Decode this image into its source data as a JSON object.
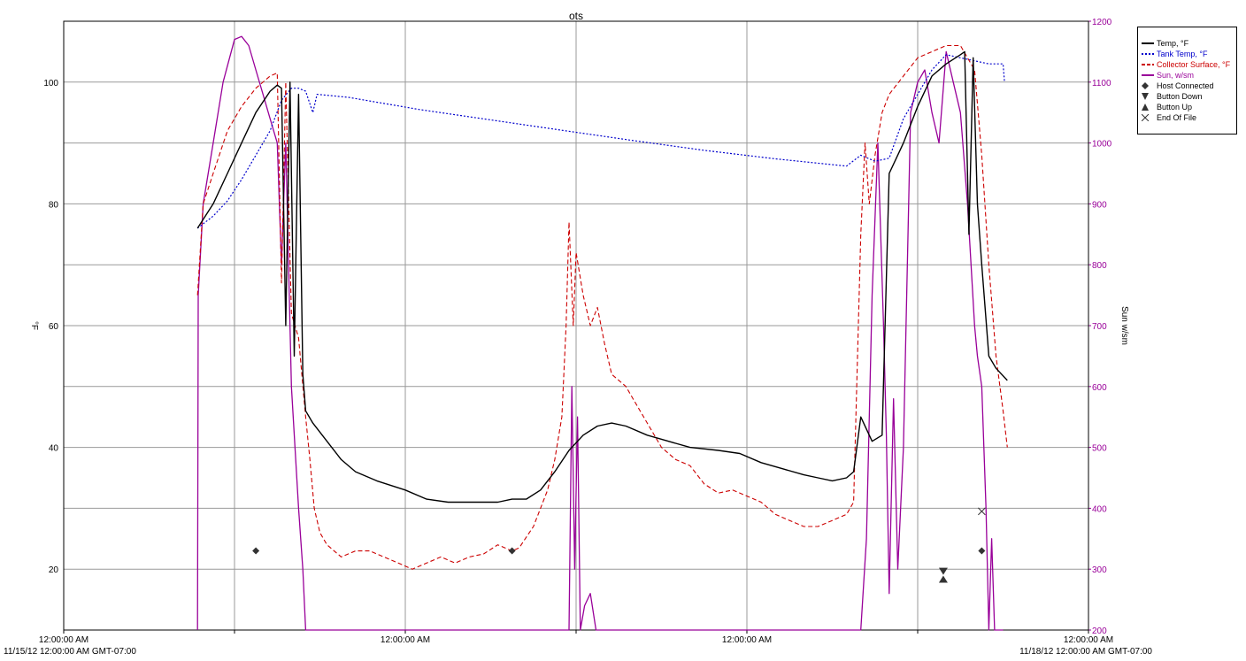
{
  "chart_data": {
    "type": "line",
    "title": "ots",
    "ylabel_left": "°F",
    "ylabel_right": "Sun w/sm",
    "x_tick_labels": [
      "12:00:00 AM",
      "12:00:00 AM",
      "12:00:00 AM",
      "12:00:00 AM"
    ],
    "x_range_label_start": "11/15/12 12:00:00 AM GMT-07:00",
    "x_range_label_end": "11/18/12 12:00:00 AM GMT-07:00",
    "xlim_hours": [
      0,
      72
    ],
    "ylim_left": [
      10,
      110
    ],
    "ylim_right": [
      200,
      1200
    ],
    "y_ticks_left": [
      "20",
      "40",
      "60",
      "80",
      "100"
    ],
    "y_ticks_right": [
      "200",
      "300",
      "400",
      "500",
      "600",
      "700",
      "800",
      "900",
      "1000",
      "1100",
      "1200"
    ],
    "grid": true,
    "legend_position": "top-right",
    "legend": [
      {
        "label": "Temp, °F",
        "color": "#000000",
        "style": "solid"
      },
      {
        "label": "Tank Temp, °F",
        "color": "#0000cc",
        "style": "dotted"
      },
      {
        "label": "Collector Surface, °F",
        "color": "#cc0000",
        "style": "dashed"
      },
      {
        "label": "Sun, w/sm",
        "color": "#990099",
        "style": "solid"
      },
      {
        "label": "Host Connected",
        "marker": "diamond"
      },
      {
        "label": "Button Down",
        "marker": "triangle-down"
      },
      {
        "label": "Button Up",
        "marker": "triangle-up"
      },
      {
        "label": "End Of File",
        "marker": "x"
      }
    ],
    "series": [
      {
        "name": "Temp, °F",
        "axis": "left",
        "points": [
          [
            9.4,
            76
          ],
          [
            10.5,
            80
          ],
          [
            11.5,
            85
          ],
          [
            12.5,
            90
          ],
          [
            13.5,
            95
          ],
          [
            14.5,
            98.5
          ],
          [
            15,
            99.5
          ],
          [
            15.3,
            99
          ],
          [
            15.6,
            60
          ],
          [
            15.9,
            100
          ],
          [
            16.2,
            55
          ],
          [
            16.5,
            98
          ],
          [
            16.8,
            52
          ],
          [
            17,
            46
          ],
          [
            17.5,
            44
          ],
          [
            18.5,
            41
          ],
          [
            19.5,
            38
          ],
          [
            20.5,
            36
          ],
          [
            22,
            34.5
          ],
          [
            24,
            33
          ],
          [
            25.5,
            31.5
          ],
          [
            27,
            31
          ],
          [
            29,
            31
          ],
          [
            30.5,
            31
          ],
          [
            31.5,
            31.5
          ],
          [
            32.5,
            31.5
          ],
          [
            33.5,
            33
          ],
          [
            34.5,
            36
          ],
          [
            35.5,
            39.5
          ],
          [
            36.5,
            42
          ],
          [
            37.5,
            43.5
          ],
          [
            38.5,
            44
          ],
          [
            39.5,
            43.5
          ],
          [
            41,
            42
          ],
          [
            42.5,
            41
          ],
          [
            44,
            40
          ],
          [
            46,
            39.5
          ],
          [
            47.5,
            39
          ],
          [
            49,
            37.5
          ],
          [
            50.5,
            36.5
          ],
          [
            52,
            35.5
          ],
          [
            53,
            35
          ],
          [
            54,
            34.5
          ],
          [
            55,
            35
          ],
          [
            55.5,
            36
          ],
          [
            56,
            45
          ],
          [
            56.8,
            41
          ],
          [
            57.5,
            42
          ],
          [
            58,
            85
          ],
          [
            59,
            90
          ],
          [
            60,
            96
          ],
          [
            61,
            101
          ],
          [
            62,
            103
          ],
          [
            63,
            104.5
          ],
          [
            63.3,
            105
          ],
          [
            63.6,
            75
          ],
          [
            63.9,
            104
          ],
          [
            64.2,
            80
          ],
          [
            64.5,
            70
          ],
          [
            65,
            55
          ],
          [
            65.5,
            53
          ],
          [
            66.3,
            51
          ]
        ]
      },
      {
        "name": "Tank Temp, °F",
        "axis": "left",
        "points": [
          [
            9.4,
            76
          ],
          [
            10.5,
            78
          ],
          [
            11.5,
            80.5
          ],
          [
            12.5,
            84
          ],
          [
            13.5,
            88
          ],
          [
            14.5,
            92
          ],
          [
            15.3,
            97
          ],
          [
            16,
            99
          ],
          [
            16.5,
            99
          ],
          [
            17,
            98.5
          ],
          [
            17.5,
            95
          ],
          [
            17.8,
            98
          ],
          [
            20,
            97.5
          ],
          [
            25,
            95.5
          ],
          [
            30,
            93.8
          ],
          [
            35,
            92.1
          ],
          [
            40,
            90.4
          ],
          [
            45,
            88.8
          ],
          [
            50,
            87.4
          ],
          [
            55,
            86.2
          ],
          [
            56,
            88
          ],
          [
            57,
            87
          ],
          [
            58,
            87.5
          ],
          [
            59,
            94
          ],
          [
            60,
            98
          ],
          [
            61,
            102
          ],
          [
            62,
            104.5
          ],
          [
            63,
            104
          ],
          [
            64,
            103.5
          ],
          [
            65,
            103
          ],
          [
            66,
            103
          ],
          [
            66.1,
            100
          ]
        ]
      },
      {
        "name": "Collector Surface, °F",
        "axis": "left",
        "points": [
          [
            9.4,
            65
          ],
          [
            9.8,
            80
          ],
          [
            10.5,
            85
          ],
          [
            11.5,
            92
          ],
          [
            12.5,
            96
          ],
          [
            13.5,
            99
          ],
          [
            14.5,
            101
          ],
          [
            15,
            101.5
          ],
          [
            15.3,
            67
          ],
          [
            15.6,
            100
          ],
          [
            16,
            62
          ],
          [
            16.5,
            58
          ],
          [
            17,
            45
          ],
          [
            17.3,
            38
          ],
          [
            17.6,
            30
          ],
          [
            18,
            26
          ],
          [
            18.5,
            24
          ],
          [
            19.5,
            22
          ],
          [
            20.5,
            23
          ],
          [
            21.5,
            23
          ],
          [
            22.5,
            22
          ],
          [
            23.5,
            21
          ],
          [
            24.5,
            20
          ],
          [
            25.5,
            21
          ],
          [
            26.5,
            22
          ],
          [
            27.5,
            21
          ],
          [
            28.5,
            22
          ],
          [
            29.5,
            22.5
          ],
          [
            30.5,
            24
          ],
          [
            31.5,
            23
          ],
          [
            32,
            23.5
          ],
          [
            33,
            27
          ],
          [
            34,
            33
          ],
          [
            34.5,
            38
          ],
          [
            35,
            45
          ],
          [
            35.3,
            60
          ],
          [
            35.5,
            77
          ],
          [
            35.8,
            60
          ],
          [
            36,
            72
          ],
          [
            36.5,
            65
          ],
          [
            37,
            60
          ],
          [
            37.5,
            63
          ],
          [
            38,
            57
          ],
          [
            38.5,
            52
          ],
          [
            39,
            51
          ],
          [
            39.5,
            50
          ],
          [
            40,
            48
          ],
          [
            41,
            44
          ],
          [
            42,
            40
          ],
          [
            43,
            38
          ],
          [
            44,
            37
          ],
          [
            45,
            34
          ],
          [
            46,
            32.5
          ],
          [
            47,
            33
          ],
          [
            48,
            32
          ],
          [
            49,
            31
          ],
          [
            50,
            29
          ],
          [
            51,
            28
          ],
          [
            52,
            27
          ],
          [
            53,
            27
          ],
          [
            54,
            28
          ],
          [
            55,
            29
          ],
          [
            55.5,
            31
          ],
          [
            56,
            75
          ],
          [
            56.3,
            90
          ],
          [
            56.6,
            80
          ],
          [
            57,
            88
          ],
          [
            57.5,
            95
          ],
          [
            58,
            98
          ],
          [
            59,
            101
          ],
          [
            60,
            104
          ],
          [
            61,
            105
          ],
          [
            62,
            106
          ],
          [
            63,
            106
          ],
          [
            64,
            102
          ],
          [
            64.5,
            88
          ],
          [
            65,
            70
          ],
          [
            65.5,
            55
          ],
          [
            66,
            46
          ],
          [
            66.3,
            40
          ]
        ]
      },
      {
        "name": "Sun, w/sm",
        "axis": "right",
        "points": [
          [
            9.4,
            200
          ],
          [
            9.45,
            750
          ],
          [
            9.8,
            900
          ],
          [
            10.5,
            1000
          ],
          [
            11.2,
            1100
          ],
          [
            12,
            1170
          ],
          [
            12.5,
            1175
          ],
          [
            13,
            1160
          ],
          [
            13.5,
            1120
          ],
          [
            14,
            1080
          ],
          [
            14.5,
            1040
          ],
          [
            15,
            1000
          ],
          [
            15.3,
            800
          ],
          [
            15.6,
            1000
          ],
          [
            16,
            600
          ],
          [
            16.5,
            400
          ],
          [
            16.8,
            300
          ],
          [
            17,
            200
          ],
          [
            35.5,
            200
          ],
          [
            35.7,
            600
          ],
          [
            35.9,
            300
          ],
          [
            36.1,
            550
          ],
          [
            36.3,
            200
          ],
          [
            36.6,
            240
          ],
          [
            37,
            260
          ],
          [
            37.4,
            200
          ],
          [
            56,
            200
          ],
          [
            56.4,
            350
          ],
          [
            56.8,
            750
          ],
          [
            57.2,
            1000
          ],
          [
            57.6,
            700
          ],
          [
            57.8,
            520
          ],
          [
            58,
            260
          ],
          [
            58.3,
            580
          ],
          [
            58.6,
            300
          ],
          [
            59,
            500
          ],
          [
            59.5,
            1050
          ],
          [
            60,
            1100
          ],
          [
            60.5,
            1120
          ],
          [
            61,
            1050
          ],
          [
            61.5,
            1000
          ],
          [
            62,
            1150
          ],
          [
            62.5,
            1100
          ],
          [
            63,
            1050
          ],
          [
            63.5,
            900
          ],
          [
            64,
            700
          ],
          [
            64.2,
            650
          ],
          [
            64.5,
            600
          ],
          [
            64.8,
            400
          ],
          [
            65,
            200
          ],
          [
            65.2,
            350
          ],
          [
            65.4,
            200
          ],
          [
            66,
            200
          ]
        ]
      }
    ],
    "events": [
      {
        "name": "Host Connected",
        "marker": "diamond",
        "points": [
          [
            13.5,
            23
          ],
          [
            31.5,
            23
          ],
          [
            64.5,
            23
          ]
        ]
      },
      {
        "name": "Button Down",
        "marker": "triangle-down",
        "points": [
          [
            61.8,
            19.5
          ]
        ]
      },
      {
        "name": "Button Up",
        "marker": "triangle-up",
        "points": [
          [
            61.8,
            18.5
          ]
        ]
      },
      {
        "name": "End Of File",
        "marker": "x",
        "points": [
          [
            64.5,
            29.5
          ]
        ]
      }
    ]
  }
}
